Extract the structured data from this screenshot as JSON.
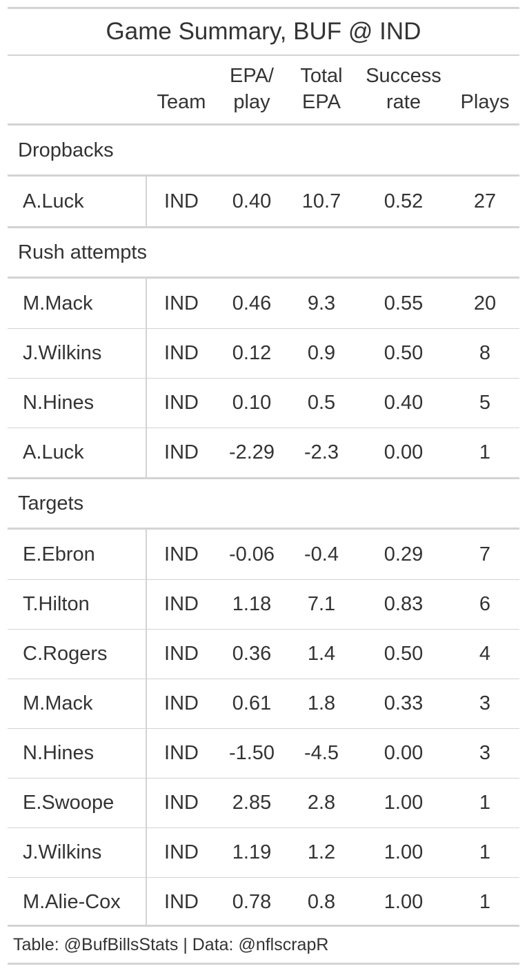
{
  "title": "Game Summary, BUF @ IND",
  "columns": {
    "team": "Team",
    "epa_play_l1": "EPA/",
    "epa_play_l2": "play",
    "total_epa_l1": "Total",
    "total_epa_l2": "EPA",
    "success_l1": "Success",
    "success_l2": "rate",
    "plays": "Plays"
  },
  "groups": [
    {
      "label": "Dropbacks",
      "rows": [
        {
          "player": "A.Luck",
          "team": "IND",
          "epa_play": "0.40",
          "total_epa": "10.7",
          "success_rate": "0.52",
          "plays": "27"
        }
      ]
    },
    {
      "label": "Rush attempts",
      "rows": [
        {
          "player": "M.Mack",
          "team": "IND",
          "epa_play": "0.46",
          "total_epa": "9.3",
          "success_rate": "0.55",
          "plays": "20"
        },
        {
          "player": "J.Wilkins",
          "team": "IND",
          "epa_play": "0.12",
          "total_epa": "0.9",
          "success_rate": "0.50",
          "plays": "8"
        },
        {
          "player": "N.Hines",
          "team": "IND",
          "epa_play": "0.10",
          "total_epa": "0.5",
          "success_rate": "0.40",
          "plays": "5"
        },
        {
          "player": "A.Luck",
          "team": "IND",
          "epa_play": "-2.29",
          "total_epa": "-2.3",
          "success_rate": "0.00",
          "plays": "1"
        }
      ]
    },
    {
      "label": "Targets",
      "rows": [
        {
          "player": "E.Ebron",
          "team": "IND",
          "epa_play": "-0.06",
          "total_epa": "-0.4",
          "success_rate": "0.29",
          "plays": "7"
        },
        {
          "player": "T.Hilton",
          "team": "IND",
          "epa_play": "1.18",
          "total_epa": "7.1",
          "success_rate": "0.83",
          "plays": "6"
        },
        {
          "player": "C.Rogers",
          "team": "IND",
          "epa_play": "0.36",
          "total_epa": "1.4",
          "success_rate": "0.50",
          "plays": "4"
        },
        {
          "player": "M.Mack",
          "team": "IND",
          "epa_play": "0.61",
          "total_epa": "1.8",
          "success_rate": "0.33",
          "plays": "3"
        },
        {
          "player": "N.Hines",
          "team": "IND",
          "epa_play": "-1.50",
          "total_epa": "-4.5",
          "success_rate": "0.00",
          "plays": "3"
        },
        {
          "player": "E.Swoope",
          "team": "IND",
          "epa_play": "2.85",
          "total_epa": "2.8",
          "success_rate": "1.00",
          "plays": "1"
        },
        {
          "player": "J.Wilkins",
          "team": "IND",
          "epa_play": "1.19",
          "total_epa": "1.2",
          "success_rate": "1.00",
          "plays": "1"
        },
        {
          "player": "M.Alie-Cox",
          "team": "IND",
          "epa_play": "0.78",
          "total_epa": "0.8",
          "success_rate": "1.00",
          "plays": "1"
        }
      ]
    }
  ],
  "footer": "Table: @BufBillsStats | Data: @nflscrapR",
  "colors": {
    "text": "#333333",
    "rule": "#d3d3d3",
    "background": "#ffffff"
  }
}
